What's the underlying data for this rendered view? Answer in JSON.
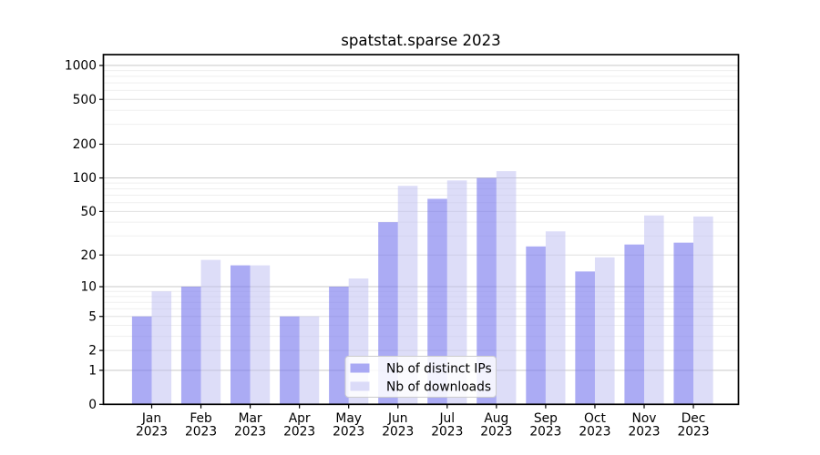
{
  "chart_data": {
    "type": "bar",
    "title": "spatstat.sparse 2023",
    "xlabel": "",
    "ylabel": "",
    "yscale": "log1p",
    "ylim": [
      0,
      1275
    ],
    "grid": true,
    "legend_position": "lower-center",
    "categories": [
      "Jan",
      "Feb",
      "Mar",
      "Apr",
      "May",
      "Jun",
      "Jul",
      "Aug",
      "Sep",
      "Oct",
      "Nov",
      "Dec"
    ],
    "category_year": "2023",
    "yticks": [
      0,
      1,
      2,
      5,
      10,
      20,
      50,
      100,
      200,
      500,
      1000
    ],
    "minor_gridlines": [
      3,
      4,
      6,
      7,
      8,
      9,
      30,
      40,
      60,
      70,
      80,
      90,
      300,
      400,
      600,
      700,
      800,
      900
    ],
    "series": [
      {
        "name": "Nb of distinct IPs",
        "color": "#7777ee",
        "fill_opacity": 0.62,
        "values": [
          5,
          10,
          16,
          5,
          10,
          40,
          65,
          100,
          24,
          14,
          25,
          26
        ]
      },
      {
        "name": "Nb of downloads",
        "color": "#bbbbf2",
        "fill_opacity": 0.5,
        "values": [
          9,
          18,
          16,
          5,
          12,
          85,
          95,
          115,
          33,
          19,
          46,
          45
        ]
      }
    ],
    "colors": {
      "frame": "#000000",
      "gridline_decade": "#c9c9c9",
      "gridline_major": "#e0e0e0",
      "gridline_minor": "#efefef",
      "legend_border": "#cccccc",
      "legend_background": "#ffffff"
    }
  }
}
